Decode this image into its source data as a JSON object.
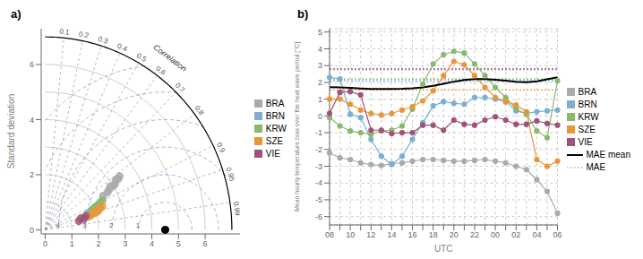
{
  "chart_data": [
    {
      "type": "taylor",
      "title": "a)",
      "ylabel": "Standard deviation",
      "xlim": [
        -0.15,
        7.3
      ],
      "ylim": [
        -0.15,
        7.3
      ],
      "xticks": [
        0,
        1,
        2,
        3,
        4,
        5,
        6
      ],
      "yticks": [
        0,
        2,
        4,
        6
      ],
      "grid": false,
      "legend": "right",
      "obs_std": 4.5,
      "max_r": 7.0,
      "std_circles": [
        1,
        2,
        3,
        4,
        5,
        6
      ],
      "corr_lines": [
        0.1,
        0.2,
        0.3,
        0.4,
        0.5,
        0.6,
        0.7,
        0.8,
        0.9,
        0.95,
        0.99
      ],
      "crms_circles": [
        1,
        2,
        3,
        4,
        5,
        6
      ],
      "crms_labels": [
        1,
        2,
        3,
        4
      ],
      "annotation": "Correlation",
      "series": [
        {
          "name": "BRA",
          "color": "#aaaaaa",
          "values": [
            [
              3.2,
              0.825
            ],
            [
              2.9,
              0.84
            ],
            [
              3.0,
              0.85
            ],
            [
              3.3,
              0.83
            ],
            [
              2.8,
              0.855
            ],
            [
              3.1,
              0.845
            ],
            [
              2.7,
              0.865
            ],
            [
              3.4,
              0.82
            ],
            [
              2.5,
              0.87
            ]
          ]
        },
        {
          "name": "BRN",
          "color": "#7bafd4",
          "values": [
            [
              1.9,
              0.93
            ],
            [
              2.0,
              0.92
            ],
            [
              2.1,
              0.915
            ],
            [
              1.8,
              0.935
            ],
            [
              2.2,
              0.91
            ],
            [
              1.7,
              0.94
            ]
          ]
        },
        {
          "name": "KRW",
          "color": "#8ab96e",
          "values": [
            [
              2.2,
              0.91
            ],
            [
              2.0,
              0.92
            ],
            [
              2.3,
              0.9
            ],
            [
              1.9,
              0.925
            ],
            [
              2.1,
              0.915
            ],
            [
              2.4,
              0.895
            ]
          ]
        },
        {
          "name": "SZE",
          "color": "#e8963a",
          "values": [
            [
              2.0,
              0.94
            ],
            [
              2.1,
              0.945
            ],
            [
              1.9,
              0.95
            ],
            [
              2.2,
              0.935
            ],
            [
              1.8,
              0.955
            ],
            [
              2.3,
              0.93
            ],
            [
              1.7,
              0.96
            ],
            [
              2.0,
              0.95
            ],
            [
              2.1,
              0.942
            ]
          ]
        },
        {
          "name": "VIE",
          "color": "#a0527a",
          "values": [
            [
              1.4,
              0.955
            ],
            [
              1.5,
              0.965
            ],
            [
              1.3,
              0.97
            ],
            [
              1.6,
              0.95
            ]
          ]
        }
      ]
    },
    {
      "type": "line",
      "title": "b)",
      "xlabel": "UTC",
      "ylabel": "Mean hourly temperature bias over the heat wave period [°C]",
      "categories": [
        "08",
        null,
        "10",
        null,
        "12",
        null,
        "14",
        null,
        "16",
        null,
        "18",
        null,
        "20",
        null,
        "22",
        null,
        "00",
        null,
        "02",
        null,
        "04",
        null,
        "06"
      ],
      "ylim": [
        -6.5,
        5.2
      ],
      "yticks": [
        -6,
        -5,
        -4,
        -3,
        -2,
        -1,
        0,
        1,
        2,
        3,
        4,
        5
      ],
      "grid": true,
      "legend": "right",
      "series": [
        {
          "name": "BRA",
          "color": "#aaaaaa",
          "marker": "circle",
          "mae": 2.75,
          "values": [
            -2.2,
            -2.5,
            -2.6,
            -2.8,
            -2.9,
            -2.95,
            -2.85,
            -2.8,
            -2.7,
            -2.6,
            -2.6,
            -2.65,
            -2.7,
            -2.7,
            -2.65,
            -2.6,
            -2.7,
            -2.8,
            -3.0,
            -3.2,
            -3.8,
            -4.5,
            -5.8
          ]
        },
        {
          "name": "BRN",
          "color": "#7bafd4",
          "marker": "circle",
          "mae": 2.1,
          "values": [
            2.3,
            2.2,
            0.1,
            -0.1,
            -1.4,
            -2.4,
            -2.9,
            -2.4,
            -1.4,
            -0.4,
            0.6,
            0.85,
            0.75,
            0.7,
            1.1,
            1.1,
            1.0,
            0.85,
            0.3,
            0.15,
            0.25,
            0.3,
            0.35
          ]
        },
        {
          "name": "KRW",
          "color": "#8ab96e",
          "marker": "circle",
          "mae": 2.2,
          "values": [
            -0.1,
            -0.6,
            -0.9,
            -1.0,
            -1.1,
            -0.9,
            -0.85,
            -0.6,
            0.4,
            1.9,
            3.1,
            3.65,
            3.85,
            3.75,
            3.1,
            2.4,
            1.7,
            1.1,
            0.4,
            0.1,
            -0.9,
            -1.3,
            2.1
          ]
        },
        {
          "name": "SZE",
          "color": "#e8963a",
          "marker": "circle",
          "mae": 1.55,
          "values": [
            1.0,
            1.0,
            0.7,
            0.35,
            0.15,
            0.05,
            0.15,
            0.35,
            0.55,
            0.9,
            1.5,
            2.4,
            3.25,
            3.05,
            2.4,
            1.7,
            1.1,
            0.85,
            0.65,
            0.25,
            -2.6,
            -3.0,
            -2.7
          ]
        },
        {
          "name": "VIE",
          "color": "#a0527a",
          "marker": "circle",
          "mae": 2.8,
          "values": [
            0.15,
            1.4,
            1.45,
            1.25,
            -0.85,
            -0.85,
            -1.05,
            -1.0,
            -1.0,
            -0.55,
            -0.55,
            -0.85,
            -0.25,
            -0.5,
            -0.55,
            -0.25,
            -0.05,
            -0.25,
            -0.5,
            -0.5,
            -0.3,
            -0.45,
            -0.55
          ]
        },
        {
          "name": "MAE mean",
          "color": "#000000",
          "marker": "none",
          "line_style": "solid",
          "values": [
            1.715,
            1.705,
            1.668,
            1.634,
            1.612,
            1.604,
            1.604,
            1.614,
            1.642,
            1.701,
            1.796,
            1.918,
            2.042,
            2.14,
            2.193,
            2.197,
            2.16,
            2.099,
            2.037,
            2.011,
            2.059,
            2.184,
            2.303
          ]
        }
      ],
      "reference_lines": {
        "name": "MAE",
        "color": "#aaaaaa",
        "line_style": "dotted"
      }
    }
  ]
}
